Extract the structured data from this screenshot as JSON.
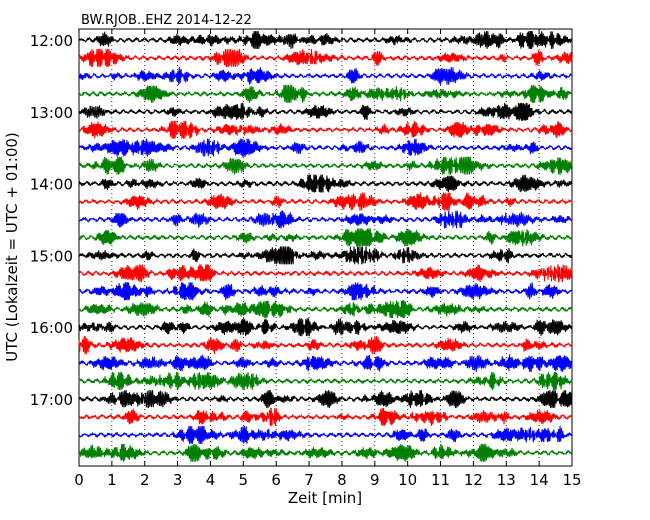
{
  "chart_data": {
    "type": "line",
    "title": "BW.RJOB..EHZ 2014-12-22",
    "xlabel": "Zeit  [min]",
    "ylabel": "UTC (Lokalzeit = UTC + 01:00)",
    "xlim": [
      0,
      15
    ],
    "x_ticks": [
      "0",
      "1",
      "2",
      "3",
      "4",
      "5",
      "6",
      "7",
      "8",
      "9",
      "10",
      "11",
      "12",
      "13",
      "14",
      "15"
    ],
    "y_tick_labels": [
      "12:00",
      "13:00",
      "14:00",
      "15:00",
      "16:00",
      "17:00"
    ],
    "grid": "vertical dotted",
    "trace_colors": [
      "#000000",
      "#ff0000",
      "#0000ff",
      "#008000"
    ],
    "trace_start_times": [
      "12:00",
      "12:15",
      "12:30",
      "12:45",
      "13:00",
      "13:15",
      "13:30",
      "13:45",
      "14:00",
      "14:15",
      "14:30",
      "14:45",
      "15:00",
      "15:15",
      "15:30",
      "15:45",
      "16:00",
      "16:15",
      "16:30",
      "16:45",
      "17:00",
      "17:15",
      "17:30",
      "17:45"
    ],
    "trace_duration_min": 15
  }
}
